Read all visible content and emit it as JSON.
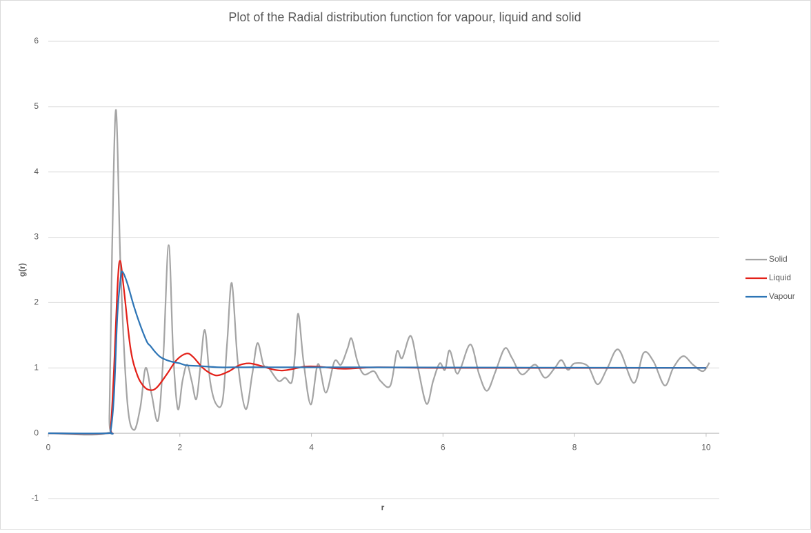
{
  "chart_data": {
    "type": "line",
    "title": "Plot of the Radial distribution function for vapour, liquid and solid",
    "xlabel": "r",
    "ylabel": "g(r)",
    "xlim": [
      0,
      10.2
    ],
    "ylim": [
      -1,
      6
    ],
    "xticks": [
      0,
      2,
      4,
      6,
      8,
      10
    ],
    "yticks": [
      -1,
      0,
      1,
      2,
      3,
      4,
      5,
      6
    ],
    "grid": true,
    "legend": "right",
    "series": [
      {
        "name": "Solid",
        "color": "#a5a5a5",
        "x": [
          0,
          0.88,
          0.93,
          0.97,
          1.03,
          1.1,
          1.2,
          1.3,
          1.4,
          1.48,
          1.57,
          1.67,
          1.75,
          1.83,
          1.9,
          1.97,
          2.04,
          2.11,
          2.18,
          2.25,
          2.31,
          2.38,
          2.46,
          2.55,
          2.65,
          2.72,
          2.79,
          2.88,
          3.0,
          3.1,
          3.18,
          3.27,
          3.35,
          3.5,
          3.6,
          3.7,
          3.75,
          3.8,
          3.88,
          3.99,
          4.1,
          4.22,
          4.35,
          4.45,
          4.55,
          4.61,
          4.7,
          4.8,
          4.95,
          5.05,
          5.2,
          5.3,
          5.38,
          5.51,
          5.62,
          5.75,
          5.85,
          5.95,
          6.03,
          6.1,
          6.2,
          6.27,
          6.42,
          6.55,
          6.67,
          6.8,
          6.94,
          7.05,
          7.2,
          7.4,
          7.55,
          7.7,
          7.8,
          7.9,
          8.0,
          8.2,
          8.35,
          8.5,
          8.67,
          8.9,
          9.05,
          9.2,
          9.37,
          9.5,
          9.65,
          9.8,
          9.95,
          10.05
        ],
        "values": [
          0,
          0,
          0.3,
          2.8,
          4.95,
          2.5,
          0.5,
          0.05,
          0.4,
          1.0,
          0.6,
          0.2,
          1.2,
          2.88,
          1.2,
          0.37,
          0.8,
          1.05,
          0.8,
          0.52,
          1.0,
          1.58,
          0.8,
          0.45,
          0.5,
          1.4,
          2.3,
          1.1,
          0.37,
          0.9,
          1.38,
          1.05,
          1.0,
          0.8,
          0.85,
          0.78,
          1.2,
          1.83,
          1.1,
          0.44,
          1.06,
          0.62,
          1.1,
          1.05,
          1.3,
          1.45,
          1.1,
          0.9,
          0.95,
          0.8,
          0.73,
          1.25,
          1.15,
          1.49,
          1.0,
          0.45,
          0.8,
          1.07,
          0.97,
          1.27,
          0.93,
          1.0,
          1.36,
          0.9,
          0.65,
          0.95,
          1.3,
          1.15,
          0.9,
          1.05,
          0.85,
          1.0,
          1.12,
          0.97,
          1.07,
          1.03,
          0.75,
          1.0,
          1.28,
          0.77,
          1.23,
          1.1,
          0.73,
          1.0,
          1.18,
          1.05,
          0.95,
          1.08
        ]
      },
      {
        "name": "Liquid",
        "color": "#e32119",
        "x": [
          0,
          0.9,
          0.95,
          1.0,
          1.05,
          1.09,
          1.15,
          1.25,
          1.35,
          1.45,
          1.55,
          1.65,
          1.8,
          1.95,
          2.1,
          2.2,
          2.35,
          2.5,
          2.6,
          2.75,
          2.9,
          3.05,
          3.2,
          3.4,
          3.55,
          3.7,
          3.9,
          4.1,
          4.4,
          4.6,
          5,
          6,
          10
        ],
        "values": [
          0,
          0,
          0.1,
          1.0,
          2.2,
          2.64,
          2.2,
          1.3,
          0.9,
          0.72,
          0.66,
          0.7,
          0.9,
          1.12,
          1.22,
          1.17,
          1.0,
          0.9,
          0.89,
          0.95,
          1.04,
          1.07,
          1.04,
          0.98,
          0.96,
          0.98,
          1.02,
          1.02,
          0.99,
          0.99,
          1.01,
          1.0,
          1.0
        ]
      },
      {
        "name": "Vapour",
        "color": "#2e75b6",
        "x": [
          0,
          0.9,
          0.95,
          1.0,
          1.05,
          1.1,
          1.13,
          1.2,
          1.3,
          1.4,
          1.5,
          1.55,
          1.62,
          1.7,
          1.8,
          1.9,
          2.0,
          2.1,
          2.3,
          2.6,
          3.0,
          4.0,
          10
        ],
        "values": [
          0,
          0,
          0.05,
          0.6,
          1.8,
          2.38,
          2.47,
          2.3,
          1.95,
          1.65,
          1.4,
          1.34,
          1.25,
          1.17,
          1.12,
          1.09,
          1.07,
          1.04,
          1.03,
          1.01,
          1.01,
          1.01,
          1.0
        ]
      }
    ]
  }
}
